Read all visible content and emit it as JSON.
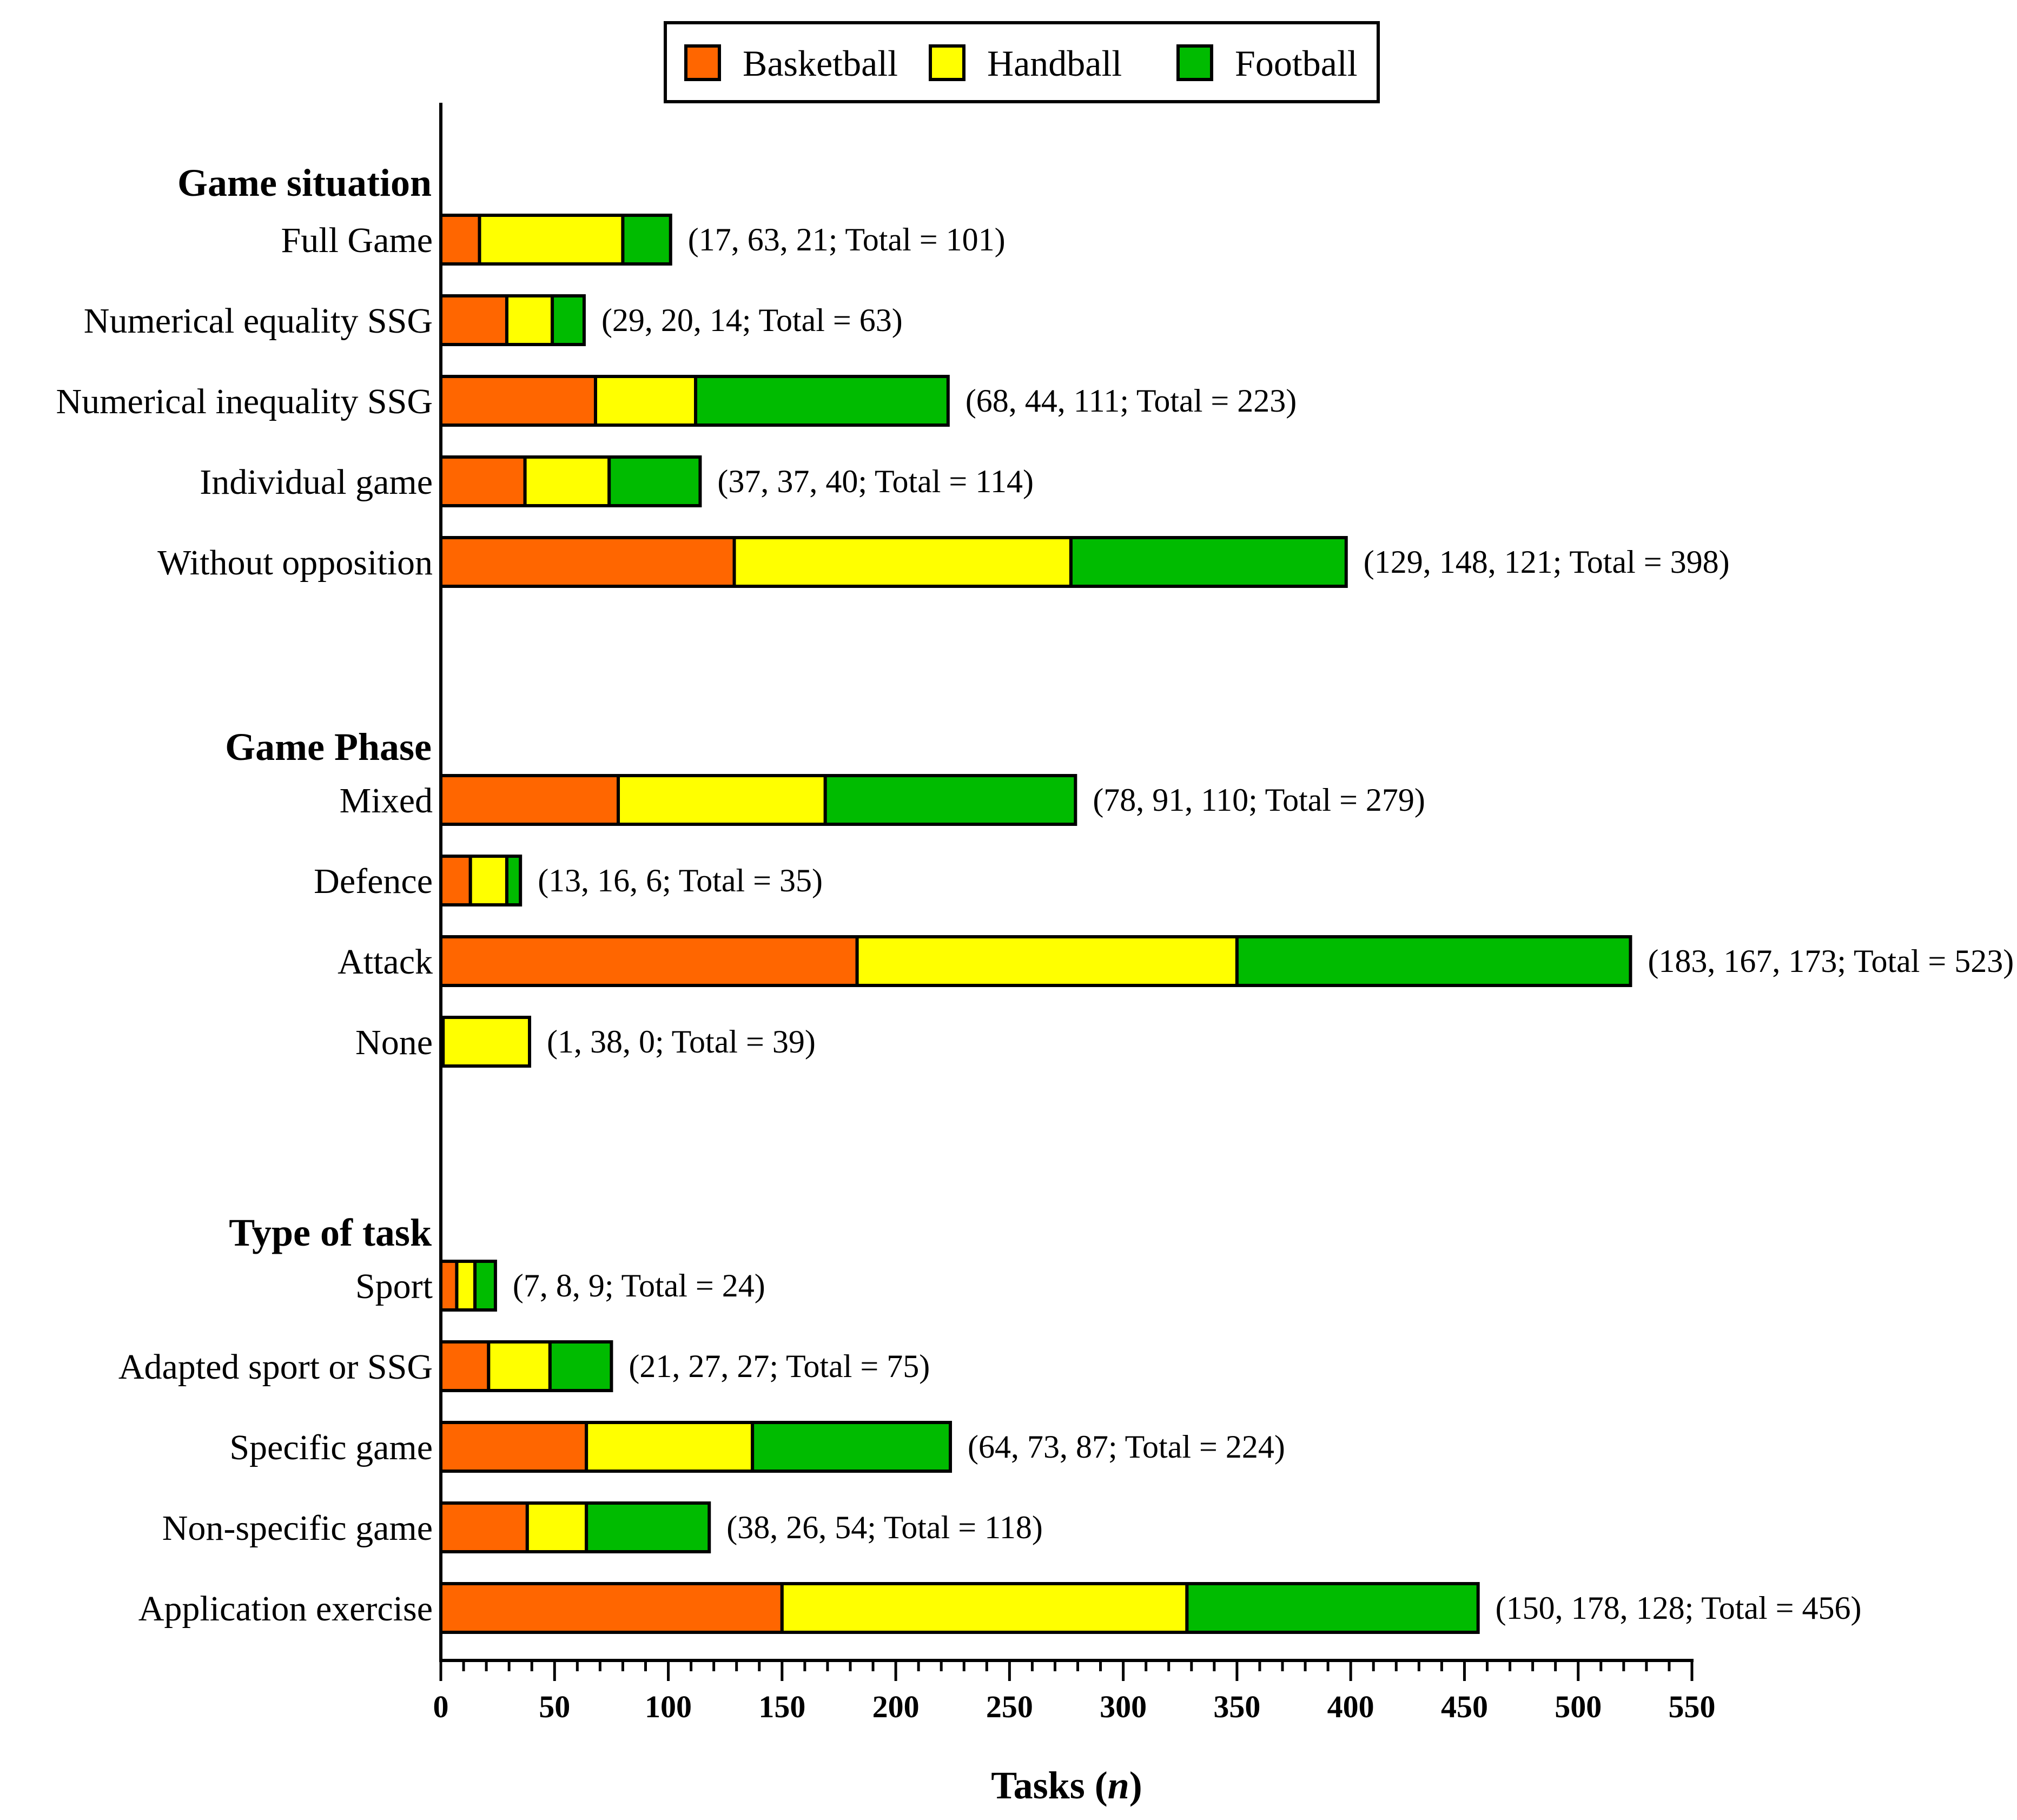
{
  "chart_data": {
    "type": "bar",
    "orientation": "horizontal",
    "stacked": true,
    "xlabel": "Tasks",
    "xlabel_var": "n",
    "xlim": [
      0,
      550
    ],
    "x_ticks": [
      0,
      50,
      100,
      150,
      200,
      250,
      300,
      350,
      400,
      450,
      500,
      550
    ],
    "grid": false,
    "legend_position": "top-center",
    "series": [
      {
        "name": "Basketball",
        "color": "#ff6600"
      },
      {
        "name": "Handball",
        "color": "#ffff00"
      },
      {
        "name": "Football",
        "color": "#00bb00"
      }
    ],
    "groups": [
      {
        "title": "Game situation",
        "rows": [
          {
            "label": "Full Game",
            "values": [
              17,
              63,
              21
            ],
            "annotation": "(17, 63, 21; Total = 101)"
          },
          {
            "label": "Numerical equality SSG",
            "values": [
              29,
              20,
              14
            ],
            "annotation": "(29, 20, 14; Total = 63)"
          },
          {
            "label": "Numerical inequality SSG",
            "values": [
              68,
              44,
              111
            ],
            "annotation": "(68, 44, 111; Total = 223)"
          },
          {
            "label": "Individual game",
            "values": [
              37,
              37,
              40
            ],
            "annotation": "(37, 37, 40; Total = 114)"
          },
          {
            "label": "Without opposition",
            "values": [
              129,
              148,
              121
            ],
            "annotation": "(129, 148, 121; Total = 398)"
          }
        ]
      },
      {
        "title": "Game Phase",
        "rows": [
          {
            "label": "Mixed",
            "values": [
              78,
              91,
              110
            ],
            "annotation": "(78, 91, 110; Total = 279)"
          },
          {
            "label": "Defence",
            "values": [
              13,
              16,
              6
            ],
            "annotation": "(13, 16, 6; Total = 35)"
          },
          {
            "label": "Attack",
            "values": [
              183,
              167,
              173
            ],
            "annotation": "(183, 167, 173; Total = 523)"
          },
          {
            "label": "None",
            "values": [
              1,
              38,
              0
            ],
            "annotation": "(1, 38, 0; Total = 39)"
          }
        ]
      },
      {
        "title": "Type of task",
        "rows": [
          {
            "label": "Sport",
            "values": [
              7,
              8,
              9
            ],
            "annotation": "(7, 8, 9; Total = 24)"
          },
          {
            "label": "Adapted sport or SSG",
            "values": [
              21,
              27,
              27
            ],
            "annotation": "(21, 27, 27; Total = 75)"
          },
          {
            "label": "Specific game",
            "values": [
              64,
              73,
              87
            ],
            "annotation": "(64, 73, 87; Total = 224)"
          },
          {
            "label": "Non-specific game",
            "values": [
              38,
              26,
              54
            ],
            "annotation": "(38, 26, 54; Total = 118)"
          },
          {
            "label": "Application exercise",
            "values": [
              150,
              178,
              128
            ],
            "annotation": "(150, 178, 128; Total = 456)"
          }
        ]
      }
    ]
  }
}
